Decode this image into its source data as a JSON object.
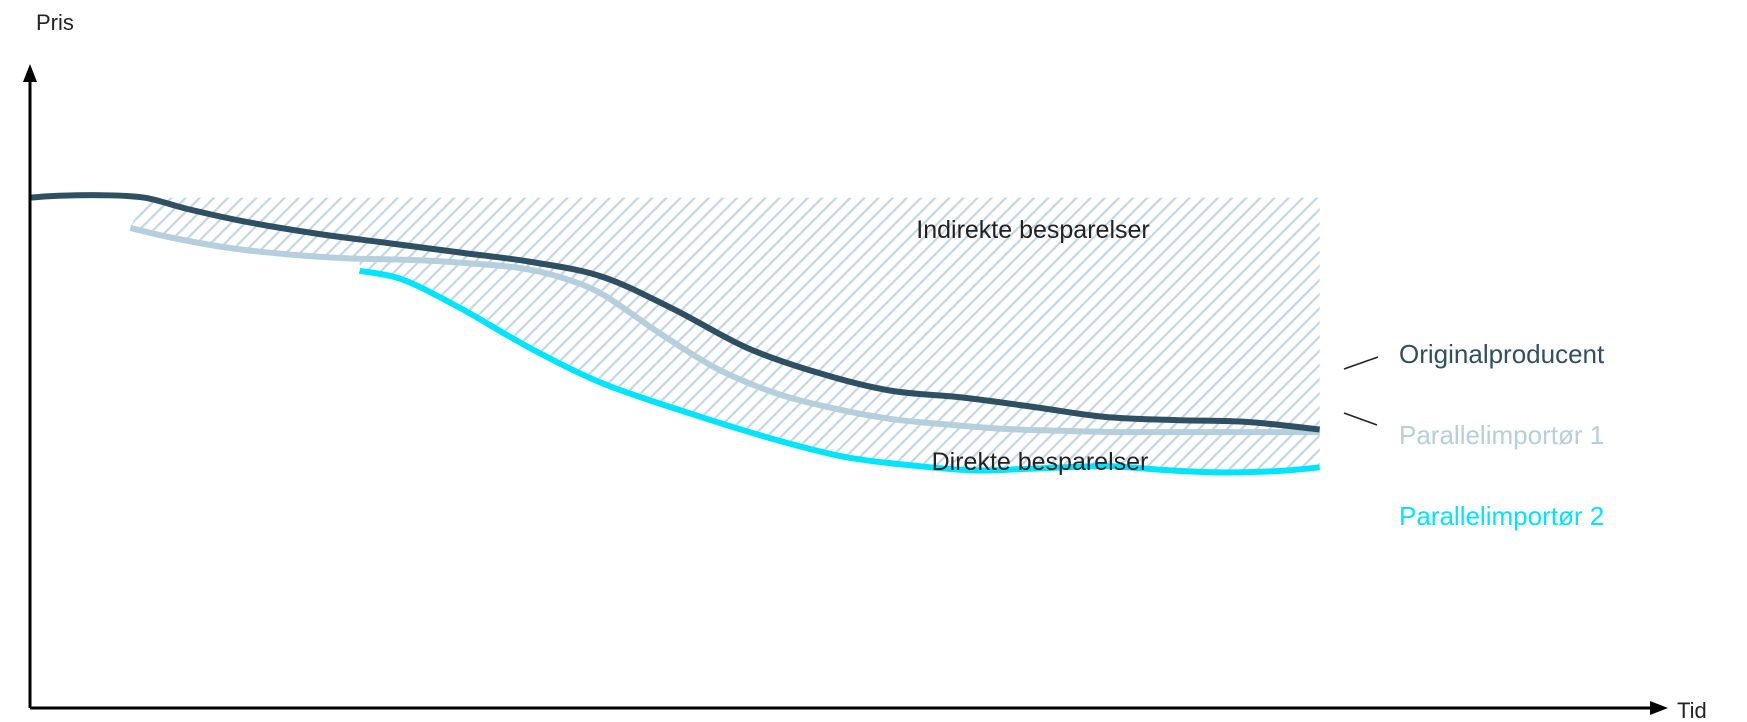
{
  "chart_data": {
    "type": "line",
    "title": "",
    "xlabel": "Tid",
    "ylabel": "Pris",
    "grid": false,
    "axis_ticks": false,
    "xlim": [
      0,
      100
    ],
    "ylim": [
      0,
      100
    ],
    "series": [
      {
        "name": "Originalproducent",
        "color": "#2f4f63",
        "points": [
          [
            0,
            81
          ],
          [
            2,
            81.3
          ],
          [
            5,
            81.4
          ],
          [
            8,
            81
          ],
          [
            11,
            79.2
          ],
          [
            15,
            77.2
          ],
          [
            20,
            75.3
          ],
          [
            25,
            73.8
          ],
          [
            30,
            72.3
          ],
          [
            35,
            70.8
          ],
          [
            40,
            68.4
          ],
          [
            45,
            63.2
          ],
          [
            50,
            57.2
          ],
          [
            55,
            53.2
          ],
          [
            60,
            50.4
          ],
          [
            65,
            49.3
          ],
          [
            70,
            47.8
          ],
          [
            75,
            46.2
          ],
          [
            80,
            45.7
          ],
          [
            85,
            45.4
          ],
          [
            90,
            44.2
          ]
        ]
      },
      {
        "name": "Parallelimportør 1",
        "color": "#b5cfdc",
        "points": [
          [
            7,
            76.2
          ],
          [
            10,
            74.6
          ],
          [
            14,
            73
          ],
          [
            18,
            72
          ],
          [
            22,
            71.4
          ],
          [
            27,
            71.1
          ],
          [
            30,
            70.7
          ],
          [
            34,
            69.9
          ],
          [
            37,
            68.4
          ],
          [
            40,
            65.6
          ],
          [
            44,
            59.4
          ],
          [
            48,
            53.8
          ],
          [
            52,
            50
          ],
          [
            56,
            47.6
          ],
          [
            60,
            45.9
          ],
          [
            64,
            45
          ],
          [
            68,
            44.3
          ],
          [
            72,
            44
          ],
          [
            76,
            43.8
          ],
          [
            80,
            43.8
          ],
          [
            85,
            43.8
          ],
          [
            90,
            43.8
          ]
        ]
      },
      {
        "name": "Parallelimportør 2",
        "color": "#00e5ff",
        "points": [
          [
            23,
            69.4
          ],
          [
            26,
            68
          ],
          [
            30,
            63.5
          ],
          [
            35,
            57
          ],
          [
            40,
            51.5
          ],
          [
            46,
            46.8
          ],
          [
            52,
            42.6
          ],
          [
            57,
            39.8
          ],
          [
            62,
            38.4
          ],
          [
            66,
            37.7
          ],
          [
            70,
            38
          ],
          [
            75,
            38.4
          ],
          [
            79,
            37.8
          ],
          [
            83,
            37.4
          ],
          [
            87,
            37.6
          ],
          [
            90,
            38.2
          ]
        ]
      }
    ],
    "annotations": [
      {
        "text": "Indirekte besparelser",
        "x": 69,
        "y": 70.5
      },
      {
        "text": "Direkte besparelser",
        "x": 69,
        "y": 54.5
      }
    ],
    "legend": {
      "placement": "right",
      "items": [
        {
          "text": "Originalproducent",
          "color": "#2f4f63"
        },
        {
          "text": "Parallelimportør 1",
          "color": "#b5cfdc"
        },
        {
          "text": "Parallelimportør 2",
          "color": "#00e5ff"
        }
      ]
    },
    "hatch_color": "#c5d7e4",
    "axis_color": "#000000",
    "text_color": "#222222"
  }
}
